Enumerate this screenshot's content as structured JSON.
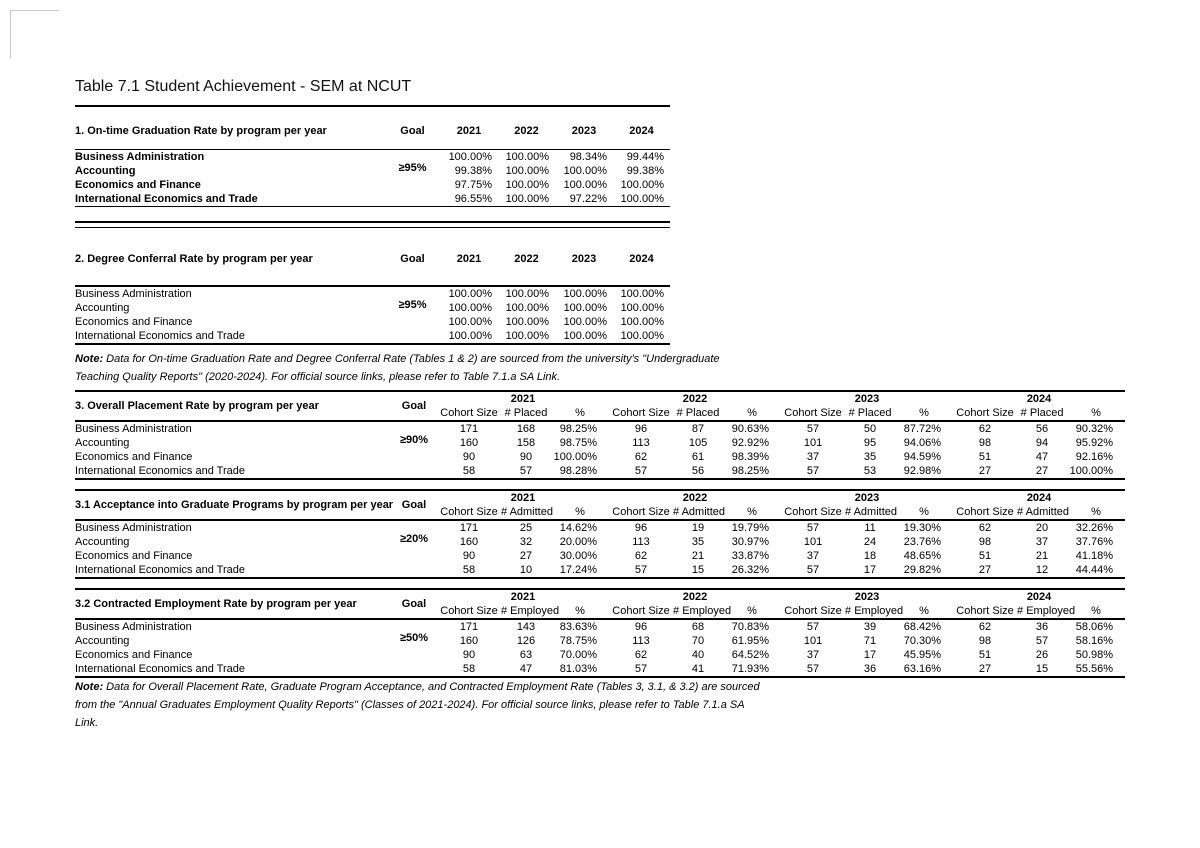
{
  "page": {
    "title": "Table 7.1 Student Achievement - SEM at NCUT"
  },
  "years": [
    "2021",
    "2022",
    "2023",
    "2024"
  ],
  "table1": {
    "heading": "1. On-time Graduation Rate by program per year",
    "goal_label": "Goal",
    "goal": "≥95%",
    "rows": [
      {
        "program": "Business Administration",
        "values": [
          "100.00%",
          "100.00%",
          "98.34%",
          "99.44%"
        ]
      },
      {
        "program": "Accounting",
        "values": [
          "99.38%",
          "100.00%",
          "100.00%",
          "99.38%"
        ]
      },
      {
        "program": "Economics and Finance",
        "values": [
          "97.75%",
          "100.00%",
          "100.00%",
          "100.00%"
        ]
      },
      {
        "program": "International Economics and Trade",
        "values": [
          "96.55%",
          "100.00%",
          "97.22%",
          "100.00%"
        ]
      }
    ]
  },
  "table2": {
    "heading": "2. Degree Conferral Rate by program per year",
    "goal_label": "Goal",
    "goal": "≥95%",
    "rows": [
      {
        "program": "Business Administration",
        "values": [
          "100.00%",
          "100.00%",
          "100.00%",
          "100.00%"
        ]
      },
      {
        "program": "Accounting",
        "values": [
          "100.00%",
          "100.00%",
          "100.00%",
          "100.00%"
        ]
      },
      {
        "program": "Economics and Finance",
        "values": [
          "100.00%",
          "100.00%",
          "100.00%",
          "100.00%"
        ]
      },
      {
        "program": "International Economics and Trade",
        "values": [
          "100.00%",
          "100.00%",
          "100.00%",
          "100.00%"
        ]
      }
    ]
  },
  "note1": {
    "label": "Note:",
    "lines": [
      "  Data for On-time Graduation Rate and Degree Conferral Rate (Tables 1 & 2) are sourced from the university's \"Undergraduate",
      "Teaching Quality Reports\" (2020-2024). For official source links, please refer to Table 7.1.a SA Link."
    ]
  },
  "table3": {
    "heading": "3. Overall Placement Rate by program per year",
    "goal_label": "Goal",
    "goal": "≥90%",
    "subheaders": [
      "Cohort Size",
      "# Placed",
      "%"
    ],
    "rows": [
      {
        "program": "Business Administration",
        "cells": [
          [
            "171",
            "168",
            "98.25%"
          ],
          [
            "96",
            "87",
            "90.63%"
          ],
          [
            "57",
            "50",
            "87.72%"
          ],
          [
            "62",
            "56",
            "90.32%"
          ]
        ]
      },
      {
        "program": "Accounting",
        "cells": [
          [
            "160",
            "158",
            "98.75%"
          ],
          [
            "113",
            "105",
            "92.92%"
          ],
          [
            "101",
            "95",
            "94.06%"
          ],
          [
            "98",
            "94",
            "95.92%"
          ]
        ]
      },
      {
        "program": "Economics and Finance",
        "cells": [
          [
            "90",
            "90",
            "100.00%"
          ],
          [
            "62",
            "61",
            "98.39%"
          ],
          [
            "37",
            "35",
            "94.59%"
          ],
          [
            "51",
            "47",
            "92.16%"
          ]
        ]
      },
      {
        "program": "International Economics and Trade",
        "cells": [
          [
            "58",
            "57",
            "98.28%"
          ],
          [
            "57",
            "56",
            "98.25%"
          ],
          [
            "57",
            "53",
            "92.98%"
          ],
          [
            "27",
            "27",
            "100.00%"
          ]
        ]
      }
    ]
  },
  "table31": {
    "heading": "3.1 Acceptance into Graduate Programs by program per year",
    "goal_label": "Goal",
    "goal": "≥20%",
    "subheaders": [
      "Cohort Size",
      "# Admitted",
      "%"
    ],
    "rows": [
      {
        "program": "Business Administration",
        "cells": [
          [
            "171",
            "25",
            "14.62%"
          ],
          [
            "96",
            "19",
            "19.79%"
          ],
          [
            "57",
            "11",
            "19.30%"
          ],
          [
            "62",
            "20",
            "32.26%"
          ]
        ]
      },
      {
        "program": "Accounting",
        "cells": [
          [
            "160",
            "32",
            "20.00%"
          ],
          [
            "113",
            "35",
            "30.97%"
          ],
          [
            "101",
            "24",
            "23.76%"
          ],
          [
            "98",
            "37",
            "37.76%"
          ]
        ]
      },
      {
        "program": "Economics and Finance",
        "cells": [
          [
            "90",
            "27",
            "30.00%"
          ],
          [
            "62",
            "21",
            "33.87%"
          ],
          [
            "37",
            "18",
            "48.65%"
          ],
          [
            "51",
            "21",
            "41.18%"
          ]
        ]
      },
      {
        "program": "International Economics and Trade",
        "cells": [
          [
            "58",
            "10",
            "17.24%"
          ],
          [
            "57",
            "15",
            "26.32%"
          ],
          [
            "57",
            "17",
            "29.82%"
          ],
          [
            "27",
            "12",
            "44.44%"
          ]
        ]
      }
    ]
  },
  "table32": {
    "heading": "3.2 Contracted Employment Rate by program per year",
    "goal_label": "Goal",
    "goal": "≥50%",
    "subheaders": [
      "Cohort Size",
      "# Employed",
      "%"
    ],
    "rows": [
      {
        "program": "Business Administration",
        "cells": [
          [
            "171",
            "143",
            "83.63%"
          ],
          [
            "96",
            "68",
            "70.83%"
          ],
          [
            "57",
            "39",
            "68.42%"
          ],
          [
            "62",
            "36",
            "58.06%"
          ]
        ]
      },
      {
        "program": "Accounting",
        "cells": [
          [
            "160",
            "126",
            "78.75%"
          ],
          [
            "113",
            "70",
            "61.95%"
          ],
          [
            "101",
            "71",
            "70.30%"
          ],
          [
            "98",
            "57",
            "58.16%"
          ]
        ]
      },
      {
        "program": "Economics and Finance",
        "cells": [
          [
            "90",
            "63",
            "70.00%"
          ],
          [
            "62",
            "40",
            "64.52%"
          ],
          [
            "37",
            "17",
            "45.95%"
          ],
          [
            "51",
            "26",
            "50.98%"
          ]
        ]
      },
      {
        "program": "International Economics and Trade",
        "cells": [
          [
            "58",
            "47",
            "81.03%"
          ],
          [
            "57",
            "41",
            "71.93%"
          ],
          [
            "57",
            "36",
            "63.16%"
          ],
          [
            "27",
            "15",
            "55.56%"
          ]
        ]
      }
    ]
  },
  "note2": {
    "label": "Note:",
    "lines": [
      "  Data for Overall Placement Rate, Graduate Program Acceptance, and Contracted Employment Rate (Tables 3, 3.1, & 3.2) are sourced",
      "from the \"Annual Graduates Employment Quality Reports\" (Classes of 2021-2024). For official source links, please refer to Table 7.1.a SA",
      "Link."
    ]
  }
}
